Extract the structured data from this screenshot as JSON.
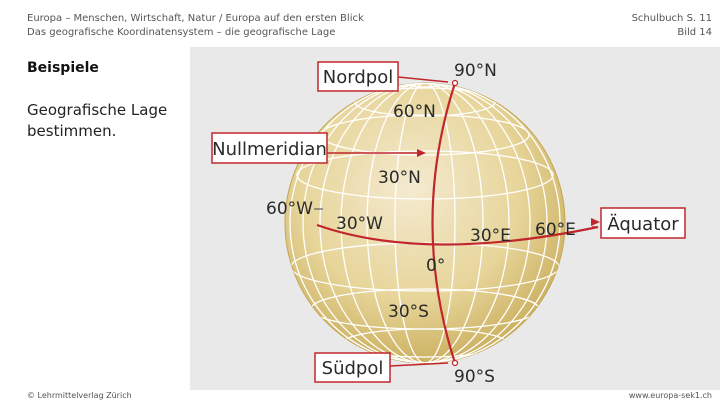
{
  "header": {
    "left_line1": "Europa – Menschen, Wirtschaft, Natur / Europa auf den ersten Blick",
    "left_line2": "Das geografische Koordinatensystem – die geografische Lage",
    "right_line1": "Schulbuch S. 11",
    "right_line2": "Bild 14"
  },
  "section_title": "Beispiele",
  "task_text": "Geografische Lage bestimmen.",
  "footer": {
    "left": "© Lehrmittelverlag Zürich",
    "right": "www.europa-sek1.ch"
  },
  "diagram": {
    "boxes": {
      "north_pole": "Nordpol",
      "prime_meridian": "Nullmeridian",
      "equator": "Äquator",
      "south_pole": "Südpol"
    },
    "labels": {
      "n90": "90°N",
      "n60": "60°N",
      "n30": "30°N",
      "zero": "0°",
      "w60": "60°W",
      "w30": "30°W",
      "e30": "30°E",
      "e60": "60°E",
      "s30": "30°S",
      "s90": "90°S"
    },
    "colors": {
      "frame_bg": "#e8e8e8",
      "globe": "#e5d28e",
      "grid": "#ffffff",
      "accent": "#c0272d",
      "box_border": "#c0272d"
    }
  }
}
